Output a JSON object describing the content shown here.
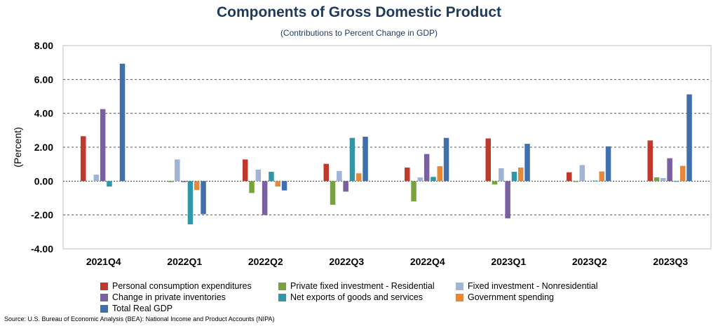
{
  "header": {
    "title": "Components of Gross Domestic Product",
    "subtitle": "(Contributions to Percent Change in GDP)"
  },
  "source": "Source: U.S. Bureau of Economic Analysis (BEA): National Income and Product Accounts (NIPA)",
  "chart_data": {
    "type": "bar",
    "title": "Components of Gross Domestic Product",
    "subtitle": "(Contributions to Percent Change in GDP)",
    "xlabel": "",
    "ylabel": "(Percent)",
    "ylim": [
      -4,
      8
    ],
    "yticks": [
      "8.00",
      "6.00",
      "4.00",
      "2.00",
      "0.00",
      "-2.00",
      "-4.00"
    ],
    "grid": "horizontal dashed",
    "legend_position": "bottom",
    "categories": [
      "2021Q4",
      "2022Q1",
      "2022Q2",
      "2022Q3",
      "2022Q4",
      "2023Q1",
      "2023Q2",
      "2023Q3"
    ],
    "series": [
      {
        "name": "Personal consumption expenditures",
        "color": "#c0392b",
        "values": [
          2.65,
          0.0,
          1.28,
          1.02,
          0.8,
          2.52,
          0.52,
          2.4
        ]
      },
      {
        "name": "Private fixed investment - Residential",
        "color": "#77a33c",
        "values": [
          0.0,
          -0.06,
          -0.7,
          -1.4,
          -1.2,
          -0.2,
          -0.05,
          0.22
        ]
      },
      {
        "name": "Fixed investment - Nonresidential",
        "color": "#a0b4d8",
        "values": [
          0.38,
          1.28,
          0.68,
          0.6,
          0.22,
          0.76,
          0.95,
          0.18
        ]
      },
      {
        "name": "Change in private inventories",
        "color": "#7a5fa3",
        "values": [
          4.25,
          -0.06,
          -2.0,
          -0.62,
          1.6,
          -2.2,
          0.0,
          1.35
        ]
      },
      {
        "name": "Net exports of goods and services",
        "color": "#2e97a8",
        "values": [
          -0.32,
          -2.55,
          0.55,
          2.55,
          0.25,
          0.55,
          0.03,
          -0.02
        ]
      },
      {
        "name": "Government spending",
        "color": "#e6883a",
        "values": [
          0.0,
          -0.52,
          -0.32,
          0.46,
          0.88,
          0.8,
          0.57,
          0.9
        ]
      },
      {
        "name": "Total Real GDP",
        "color": "#3f6fad",
        "values": [
          6.93,
          -1.95,
          -0.55,
          2.62,
          2.55,
          2.2,
          2.05,
          5.12
        ]
      }
    ]
  }
}
